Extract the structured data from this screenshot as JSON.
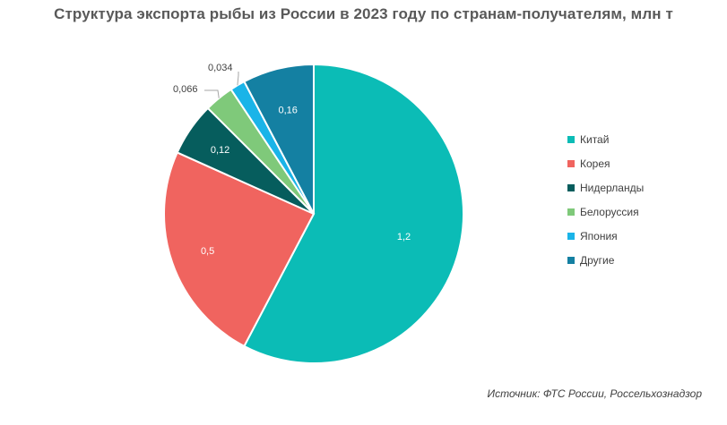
{
  "chart_data": {
    "type": "pie",
    "title": "Структура экспорта рыбы из России в 2023 году по странам-получателям, млн т",
    "source": "Источник: ФТС России, Россельхознадзор",
    "legend_position": "right",
    "slices": [
      {
        "name": "Китай",
        "value": 1.2,
        "label": "1,2",
        "color": "#0bbcb6"
      },
      {
        "name": "Корея",
        "value": 0.5,
        "label": "0,5",
        "color": "#f0645f"
      },
      {
        "name": "Нидерланды",
        "value": 0.12,
        "label": "0,12",
        "color": "#065d5d"
      },
      {
        "name": "Белоруссия",
        "value": 0.066,
        "label": "0,066",
        "color": "#7fc97a"
      },
      {
        "name": "Япония",
        "value": 0.034,
        "label": "0,034",
        "color": "#1ab4e8"
      },
      {
        "name": "Другие",
        "value": 0.16,
        "label": "0,16",
        "color": "#1480a2"
      }
    ]
  }
}
